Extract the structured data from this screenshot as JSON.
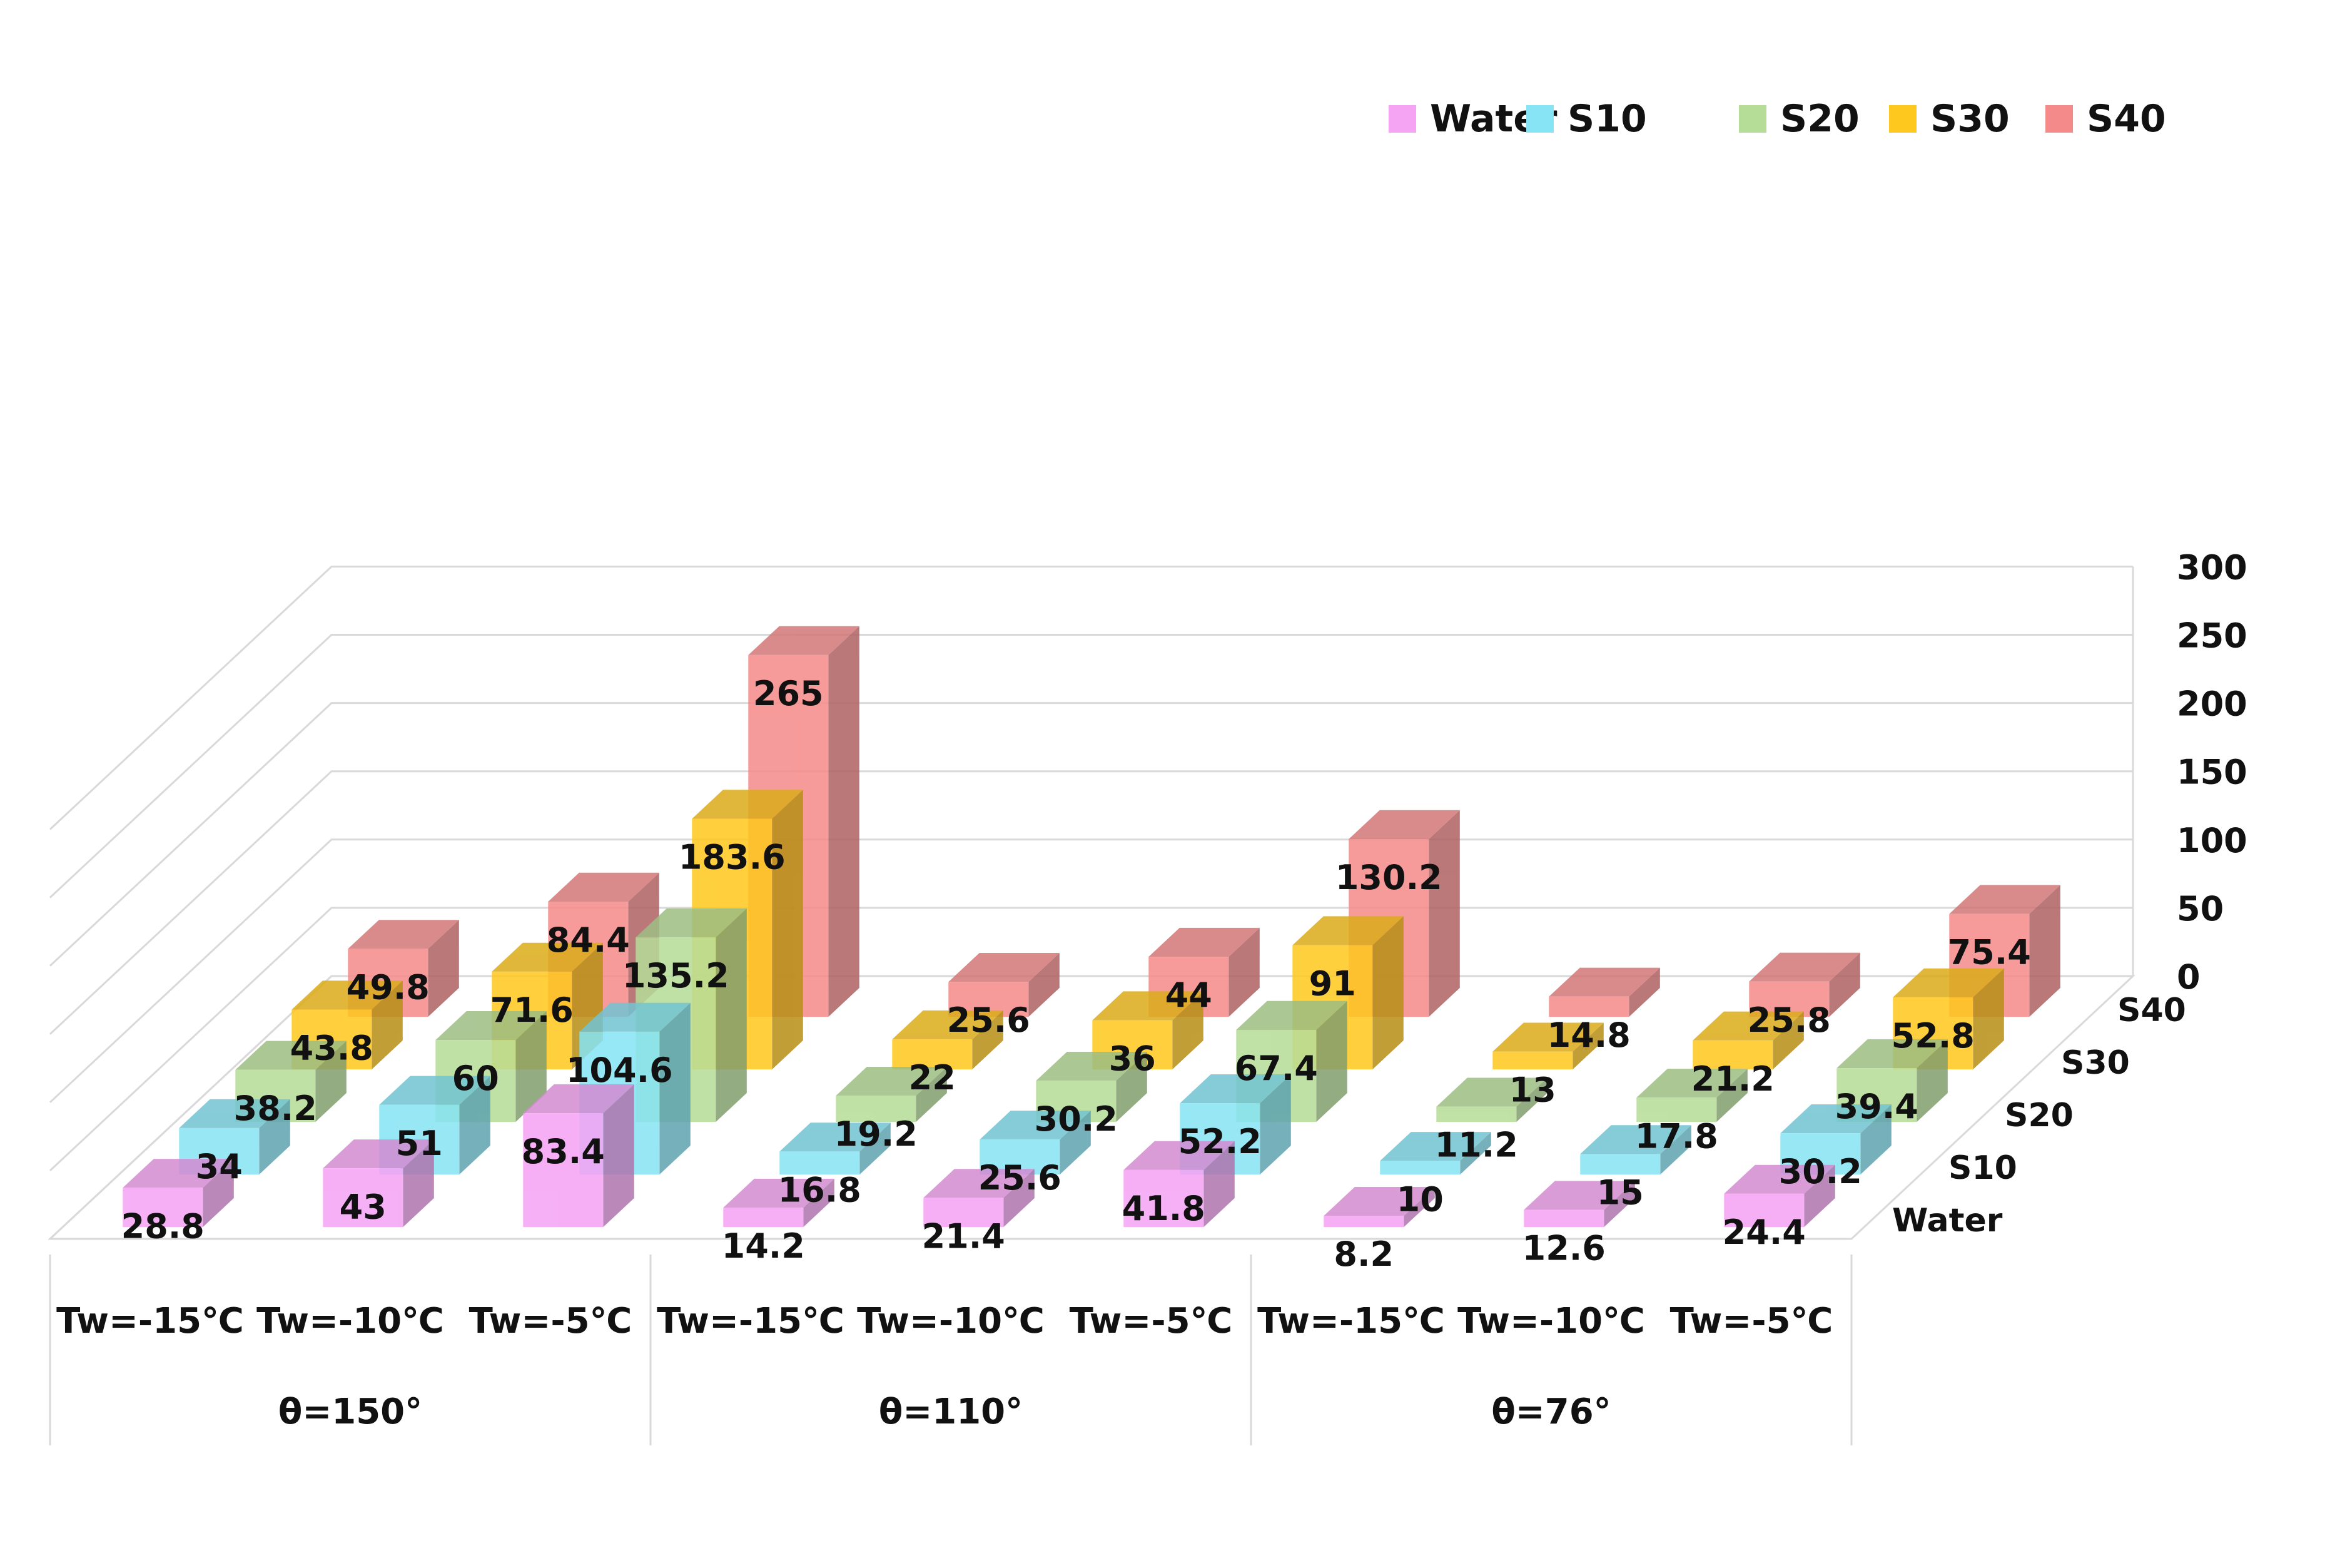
{
  "chart_data": {
    "type": "bar",
    "subtype": "3d-column",
    "groups": [
      {
        "label": "θ=150°",
        "categories": [
          "Tw=-15℃",
          "Tw=-10℃",
          "Tw=-5℃"
        ]
      },
      {
        "label": "θ=110°",
        "categories": [
          "Tw=-15℃",
          "Tw=-10℃",
          "Tw=-5℃"
        ]
      },
      {
        "label": "θ=76°",
        "categories": [
          "Tw=-15℃",
          "Tw=-10℃",
          "Tw=-5℃"
        ]
      }
    ],
    "series": [
      {
        "name": "Water",
        "color": "#F5A3F3",
        "values": [
          28.8,
          43,
          83.4,
          14.2,
          21.4,
          41.8,
          8.2,
          12.6,
          24.4
        ]
      },
      {
        "name": "S10",
        "color": "#86E4F4",
        "values": [
          34,
          51,
          104.6,
          16.8,
          25.6,
          52.2,
          10,
          15,
          30.2
        ]
      },
      {
        "name": "S20",
        "color": "#B6DD98",
        "values": [
          38.2,
          60,
          135.2,
          19.2,
          30.2,
          67.4,
          11.2,
          17.8,
          39.4
        ]
      },
      {
        "name": "S30",
        "color": "#FFC81E",
        "values": [
          43.8,
          71.6,
          183.6,
          22,
          36,
          91,
          13,
          21.2,
          52.8
        ]
      },
      {
        "name": "S40",
        "color": "#F58A8A",
        "values": [
          49.8,
          84.4,
          265,
          25.6,
          44,
          130.2,
          14.8,
          25.8,
          75.4
        ]
      }
    ],
    "depth_axis_labels": [
      "Water",
      "S10",
      "S20",
      "S30",
      "S40"
    ],
    "yaxis": {
      "min": 0,
      "max": 300,
      "step": 50,
      "ticks": [
        "0",
        "50",
        "100",
        "150",
        "200",
        "250",
        "300"
      ]
    },
    "legend_position": "top-right",
    "grid": true,
    "title": "",
    "xlabel": "",
    "ylabel": ""
  }
}
